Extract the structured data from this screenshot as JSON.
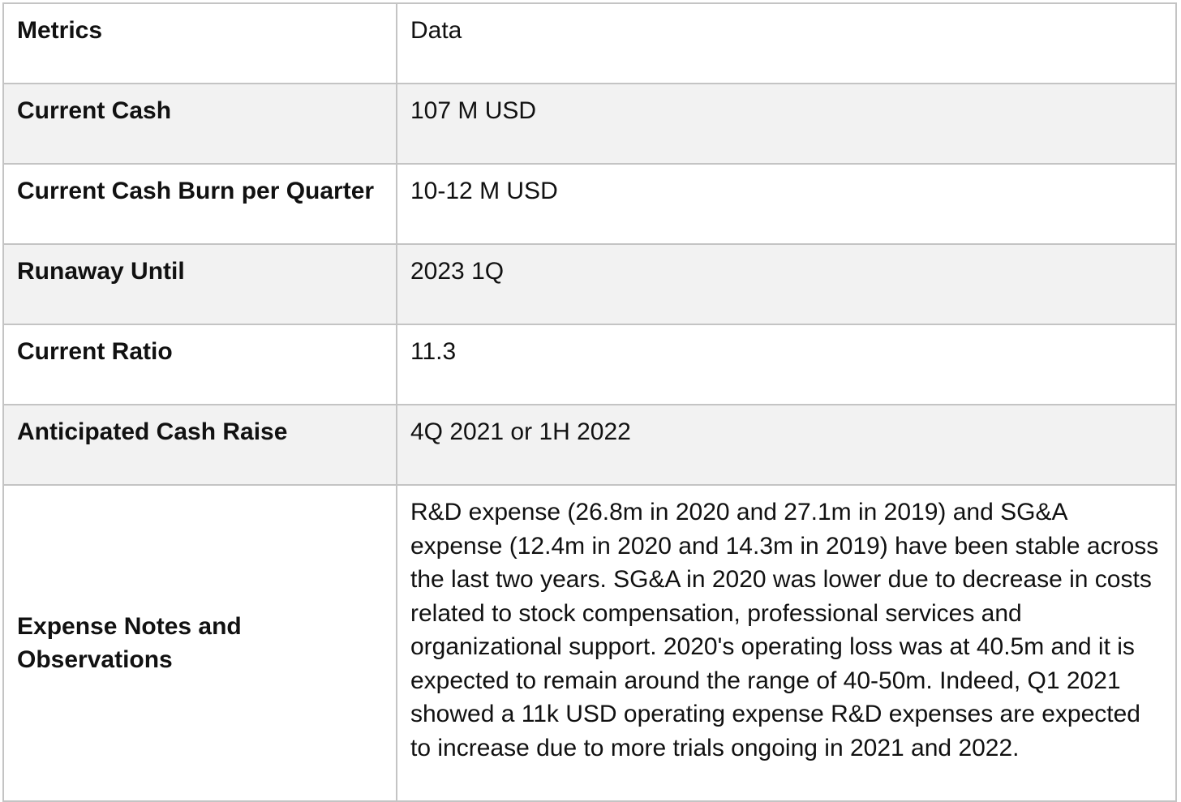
{
  "table": {
    "headers": [
      "Metrics",
      "Data"
    ],
    "rows": [
      {
        "metric": "Current Cash",
        "value": "107 M USD"
      },
      {
        "metric": "Current Cash Burn per Quarter",
        "value": "10-12 M USD"
      },
      {
        "metric": "Runaway Until",
        "value": "2023 1Q"
      },
      {
        "metric": "Current Ratio",
        "value": "11.3"
      },
      {
        "metric": "Anticipated Cash Raise",
        "value": "4Q 2021 or 1H 2022"
      },
      {
        "metric": "Expense Notes and Observations",
        "value": "R&D expense (26.8m in 2020 and 27.1m in 2019) and SG&A expense (12.4m in 2020 and 14.3m in 2019) have been stable across the last two years. SG&A in 2020 was lower due to decrease in costs related to stock compensation, professional services and organizational support. 2020's operating loss was at 40.5m and it is expected to remain around the range of 40-50m. Indeed, Q1 2021 showed a 11k USD operating expense R&D expenses are expected to increase due to more trials ongoing in 2021 and 2022."
      }
    ]
  },
  "colors": {
    "border": "#c4c4c4",
    "shaded_row": "#f2f2f2",
    "text": "#111111"
  }
}
